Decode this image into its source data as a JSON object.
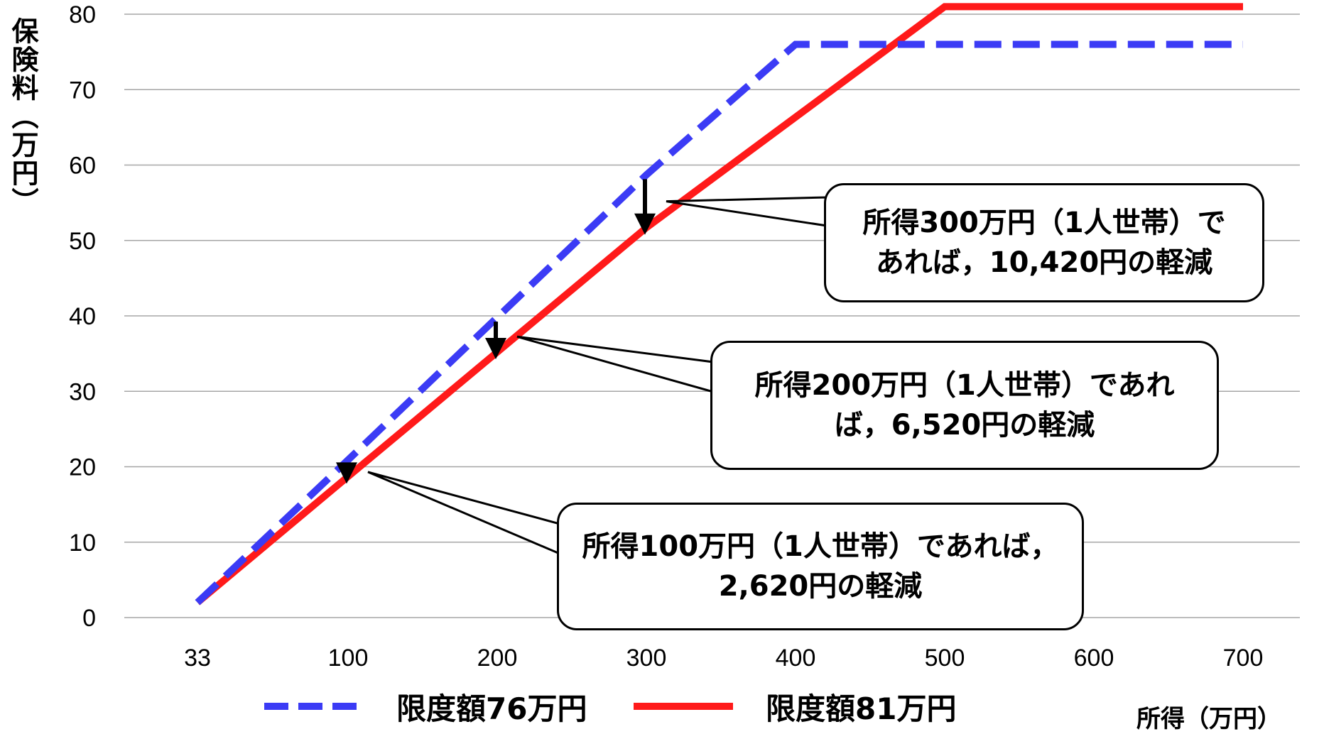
{
  "chart_data": {
    "type": "line",
    "ylabel": "保険料（万円）",
    "xlabel": "所得（万円）",
    "x_ticks": [
      "33",
      "100",
      "200",
      "300",
      "400",
      "500",
      "600",
      "700"
    ],
    "y_ticks": [
      "0",
      "10",
      "20",
      "30",
      "40",
      "50",
      "60",
      "70",
      "80"
    ],
    "ylim": [
      0,
      80
    ],
    "grid": true,
    "legend_position": "bottom",
    "series": [
      {
        "name": "限度額76万円",
        "color": "#3b3bf5",
        "style": "dashed",
        "x": [
          33,
          100,
          200,
          300,
          400,
          700
        ],
        "y": [
          2,
          20.9,
          39.8,
          58.7,
          76,
          76
        ]
      },
      {
        "name": "限度額81万円",
        "color": "#ff1a1a",
        "style": "solid",
        "x": [
          33,
          100,
          200,
          300,
          500,
          700
        ],
        "y": [
          2,
          18.7,
          35.2,
          51.7,
          81,
          81
        ]
      }
    ],
    "annotations": [
      {
        "x": 300,
        "lines": [
          "所得300万円（1人世帯）で",
          "あれば，10,420円の軽減"
        ]
      },
      {
        "x": 200,
        "lines": [
          "所得200万円（1人世帯）であれ",
          "ば，6,520円の軽減"
        ]
      },
      {
        "x": 100,
        "lines": [
          "所得100万円（1人世帯）であれば，",
          "2,620円の軽減"
        ]
      }
    ]
  }
}
